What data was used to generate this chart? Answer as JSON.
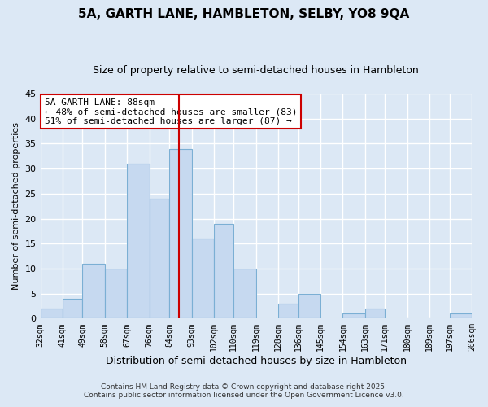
{
  "title": "5A, GARTH LANE, HAMBLETON, SELBY, YO8 9QA",
  "subtitle": "Size of property relative to semi-detached houses in Hambleton",
  "xlabel": "Distribution of semi-detached houses by size in Hambleton",
  "ylabel": "Number of semi-detached properties",
  "bin_edges": [
    32,
    41,
    49,
    58,
    67,
    76,
    84,
    93,
    102,
    110,
    119,
    128,
    136,
    145,
    154,
    163,
    171,
    180,
    189,
    197,
    206
  ],
  "bar_heights": [
    2,
    4,
    11,
    10,
    31,
    24,
    34,
    16,
    19,
    10,
    0,
    3,
    5,
    0,
    1,
    2,
    0,
    0,
    0,
    1
  ],
  "bar_color": "#c6d9f0",
  "bar_edge_color": "#7bafd4",
  "vline_x": 88,
  "vline_color": "#cc0000",
  "annotation_title": "5A GARTH LANE: 88sqm",
  "annotation_line1": "← 48% of semi-detached houses are smaller (83)",
  "annotation_line2": "51% of semi-detached houses are larger (87) →",
  "annotation_box_color": "#ffffff",
  "annotation_box_edge": "#cc0000",
  "ylim": [
    0,
    45
  ],
  "yticks": [
    0,
    5,
    10,
    15,
    20,
    25,
    30,
    35,
    40,
    45
  ],
  "footer1": "Contains HM Land Registry data © Crown copyright and database right 2025.",
  "footer2": "Contains public sector information licensed under the Open Government Licence v3.0.",
  "background_color": "#dce8f5",
  "title_fontsize": 11,
  "subtitle_fontsize": 9,
  "tick_label_fontsize": 7,
  "ylabel_fontsize": 8,
  "xlabel_fontsize": 9,
  "annotation_fontsize": 8,
  "footer_fontsize": 6.5
}
